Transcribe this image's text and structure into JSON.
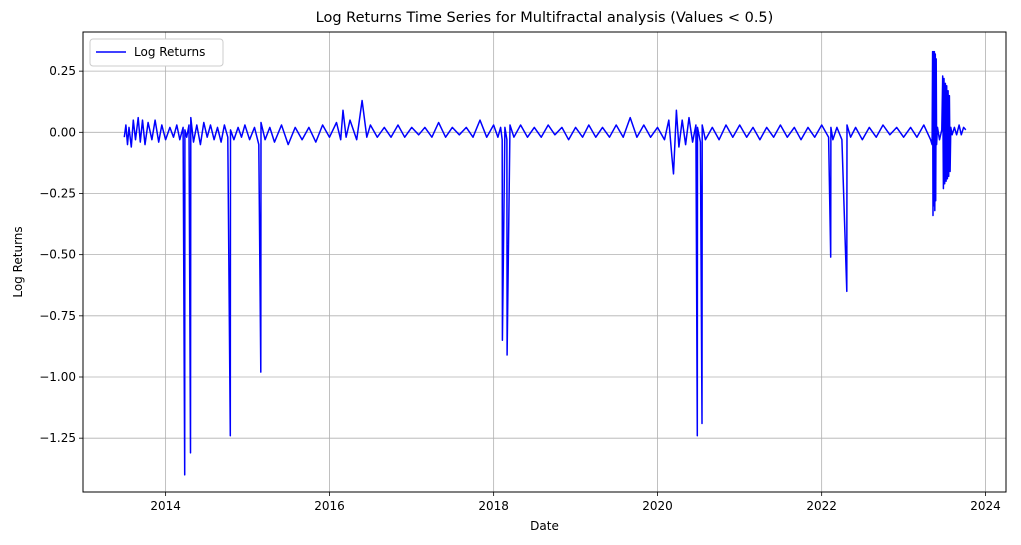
{
  "chart_data": {
    "type": "line",
    "title": "Log Returns Time Series for Multifractal analysis (Values < 0.5)",
    "xlabel": "Date",
    "ylabel": "Log Returns",
    "xlim": [
      "2012-12-29",
      "2024-04-01"
    ],
    "ylim": [
      -1.47,
      0.41
    ],
    "x_ticks": [
      "2014",
      "2016",
      "2018",
      "2020",
      "2022",
      "2024"
    ],
    "y_ticks": [
      0.25,
      0.0,
      -0.25,
      -0.5,
      -0.75,
      -1.0,
      -1.25
    ],
    "y_tick_labels": [
      "0.25",
      "0.00",
      "−0.25",
      "−0.50",
      "−0.75",
      "−1.00",
      "−1.25"
    ],
    "grid": true,
    "legend_position": "top-left",
    "color": "#0000ff",
    "series": [
      {
        "name": "Log Returns",
        "x": [
          "2013-07-01",
          "2013-07-08",
          "2013-07-15",
          "2013-07-22",
          "2013-08-01",
          "2013-08-10",
          "2013-08-20",
          "2013-09-01",
          "2013-09-10",
          "2013-09-20",
          "2013-10-01",
          "2013-10-15",
          "2013-11-01",
          "2013-11-15",
          "2013-12-01",
          "2013-12-15",
          "2014-01-01",
          "2014-01-20",
          "2014-02-05",
          "2014-02-20",
          "2014-03-05",
          "2014-03-20",
          "2014-03-27",
          "2014-03-28",
          "2014-04-05",
          "2014-04-15",
          "2014-04-22",
          "2014-04-23",
          "2014-05-05",
          "2014-05-20",
          "2014-06-05",
          "2014-06-20",
          "2014-07-05",
          "2014-07-20",
          "2014-08-05",
          "2014-08-20",
          "2014-09-05",
          "2014-09-20",
          "2014-10-05",
          "2014-10-16",
          "2014-10-17",
          "2014-11-01",
          "2014-11-20",
          "2014-12-05",
          "2014-12-20",
          "2015-01-10",
          "2015-02-01",
          "2015-02-20",
          "2015-03-01",
          "2015-03-02",
          "2015-03-20",
          "2015-04-10",
          "2015-05-01",
          "2015-06-01",
          "2015-07-01",
          "2015-08-01",
          "2015-09-01",
          "2015-10-01",
          "2015-11-01",
          "2015-12-01",
          "2016-01-01",
          "2016-02-01",
          "2016-02-20",
          "2016-03-01",
          "2016-03-15",
          "2016-04-01",
          "2016-05-01",
          "2016-05-25",
          "2016-06-15",
          "2016-07-01",
          "2016-08-01",
          "2016-09-01",
          "2016-10-01",
          "2016-11-01",
          "2016-12-01",
          "2017-01-01",
          "2017-02-01",
          "2017-03-01",
          "2017-04-01",
          "2017-05-01",
          "2017-06-01",
          "2017-07-01",
          "2017-08-01",
          "2017-09-01",
          "2017-10-01",
          "2017-11-01",
          "2017-12-01",
          "2018-01-01",
          "2018-01-20",
          "2018-02-01",
          "2018-02-08",
          "2018-02-09",
          "2018-02-20",
          "2018-03-01",
          "2018-03-02",
          "2018-03-15",
          "2018-04-01",
          "2018-05-01",
          "2018-06-01",
          "2018-07-01",
          "2018-08-01",
          "2018-09-01",
          "2018-10-01",
          "2018-11-01",
          "2018-12-01",
          "2019-01-01",
          "2019-02-01",
          "2019-03-01",
          "2019-04-01",
          "2019-05-01",
          "2019-06-01",
          "2019-07-01",
          "2019-08-01",
          "2019-09-01",
          "2019-10-01",
          "2019-11-01",
          "2019-12-01",
          "2020-01-01",
          "2020-02-01",
          "2020-02-20",
          "2020-03-05",
          "2020-03-12",
          "2020-03-25",
          "2020-04-05",
          "2020-04-20",
          "2020-05-05",
          "2020-05-20",
          "2020-06-05",
          "2020-06-20",
          "2020-06-26",
          "2020-06-27",
          "2020-07-10",
          "2020-07-17",
          "2020-07-18",
          "2020-08-01",
          "2020-09-01",
          "2020-10-01",
          "2020-11-01",
          "2020-12-01",
          "2021-01-01",
          "2021-02-01",
          "2021-03-01",
          "2021-04-01",
          "2021-05-01",
          "2021-06-01",
          "2021-07-01",
          "2021-08-01",
          "2021-09-01",
          "2021-10-01",
          "2021-11-01",
          "2021-12-01",
          "2022-01-01",
          "2022-02-01",
          "2022-02-10",
          "2022-02-11",
          "2022-02-20",
          "2022-03-10",
          "2022-04-01",
          "2022-04-23",
          "2022-04-24",
          "2022-05-10",
          "2022-06-01",
          "2022-07-01",
          "2022-08-01",
          "2022-09-01",
          "2022-10-01",
          "2022-11-01",
          "2022-12-01",
          "2023-01-01",
          "2023-02-01",
          "2023-03-01",
          "2023-04-01",
          "2023-05-01",
          "2023-05-08",
          "2023-05-10",
          "2023-05-12",
          "2023-05-14",
          "2023-05-16",
          "2023-05-18",
          "2023-05-20",
          "2023-05-22",
          "2023-05-24",
          "2023-05-26",
          "2023-05-28",
          "2023-06-01",
          "2023-06-10",
          "2023-06-20",
          "2023-06-24",
          "2023-06-27",
          "2023-06-30",
          "2023-07-03",
          "2023-07-06",
          "2023-07-09",
          "2023-07-12",
          "2023-07-15",
          "2023-07-18",
          "2023-07-21",
          "2023-07-24",
          "2023-07-27",
          "2023-07-30",
          "2023-08-05",
          "2023-08-15",
          "2023-08-25",
          "2023-09-05",
          "2023-09-15",
          "2023-09-25",
          "2023-10-05"
        ],
        "y": [
          -0.02,
          0.03,
          -0.05,
          0.02,
          -0.06,
          0.05,
          -0.03,
          0.06,
          -0.04,
          0.05,
          -0.05,
          0.04,
          -0.03,
          0.05,
          -0.04,
          0.03,
          -0.03,
          0.02,
          -0.02,
          0.03,
          -0.03,
          0.02,
          -1.4,
          0.01,
          -0.02,
          0.03,
          -1.31,
          0.06,
          -0.04,
          0.03,
          -0.05,
          0.04,
          -0.02,
          0.03,
          -0.03,
          0.02,
          -0.04,
          0.03,
          -0.02,
          -1.24,
          0.01,
          -0.03,
          0.02,
          -0.02,
          0.03,
          -0.03,
          0.02,
          -0.05,
          -0.98,
          0.04,
          -0.03,
          0.02,
          -0.04,
          0.03,
          -0.05,
          0.02,
          -0.03,
          0.02,
          -0.04,
          0.03,
          -0.02,
          0.04,
          -0.03,
          0.09,
          -0.02,
          0.05,
          -0.03,
          0.13,
          -0.02,
          0.03,
          -0.02,
          0.02,
          -0.02,
          0.03,
          -0.02,
          0.02,
          -0.01,
          0.02,
          -0.02,
          0.04,
          -0.02,
          0.02,
          -0.01,
          0.02,
          -0.02,
          0.05,
          -0.02,
          0.03,
          -0.02,
          0.02,
          -0.03,
          -0.85,
          0.02,
          -0.03,
          -0.91,
          0.03,
          -0.02,
          0.03,
          -0.02,
          0.02,
          -0.02,
          0.03,
          -0.01,
          0.02,
          -0.03,
          0.02,
          -0.02,
          0.03,
          -0.02,
          0.02,
          -0.02,
          0.03,
          -0.02,
          0.06,
          -0.02,
          0.03,
          -0.02,
          0.02,
          -0.03,
          0.05,
          -0.1,
          -0.17,
          0.09,
          -0.06,
          0.05,
          -0.05,
          0.06,
          -0.04,
          0.03,
          -1.24,
          0.02,
          -0.04,
          -1.19,
          0.03,
          -0.03,
          0.02,
          -0.03,
          0.03,
          -0.02,
          0.03,
          -0.02,
          0.02,
          -0.03,
          0.02,
          -0.02,
          0.03,
          -0.02,
          0.02,
          -0.03,
          0.02,
          -0.02,
          0.03,
          -0.02,
          -0.51,
          0.02,
          -0.03,
          0.02,
          -0.03,
          -0.65,
          0.03,
          -0.02,
          0.02,
          -0.03,
          0.02,
          -0.02,
          0.03,
          -0.01,
          0.02,
          -0.02,
          0.02,
          -0.02,
          0.03,
          -0.03,
          -0.05,
          0.33,
          -0.34,
          0.33,
          -0.3,
          0.33,
          -0.32,
          0.32,
          -0.28,
          0.3,
          -0.05,
          0.02,
          -0.03,
          0.01,
          0.23,
          -0.23,
          0.22,
          -0.21,
          0.2,
          -0.2,
          0.19,
          -0.19,
          0.17,
          -0.18,
          0.15,
          -0.16,
          0.02,
          -0.01,
          0.02,
          -0.01,
          0.03,
          -0.01,
          0.02,
          0.01
        ]
      }
    ]
  }
}
